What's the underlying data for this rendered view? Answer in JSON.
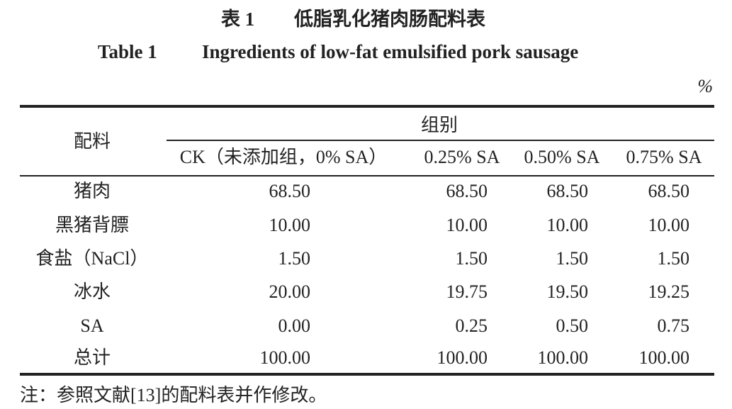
{
  "caption": {
    "label_cn": "表 1",
    "title_cn": "低脂乳化猪肉肠配料表",
    "label_en": "Table 1",
    "title_en": "Ingredients of low-fat emulsified pork sausage"
  },
  "unit": "%",
  "table": {
    "header": {
      "row_label": "配料",
      "group": "组别",
      "columns": [
        "CK（未添加组，0% SA）",
        "0.25% SA",
        "0.50% SA",
        "0.75% SA"
      ]
    },
    "rows": [
      [
        "猪肉",
        "68.50",
        "68.50",
        "68.50",
        "68.50"
      ],
      [
        "黑猪背膘",
        "10.00",
        "10.00",
        "10.00",
        "10.00"
      ],
      [
        "食盐（NaCl）",
        "1.50",
        "1.50",
        "1.50",
        "1.50"
      ],
      [
        "冰水",
        "20.00",
        "19.75",
        "19.50",
        "19.25"
      ],
      [
        "SA",
        "0.00",
        "0.25",
        "0.50",
        "0.75"
      ],
      [
        "总计",
        "100.00",
        "100.00",
        "100.00",
        "100.00"
      ]
    ]
  },
  "note": "注：参照文献[13]的配料表并作修改。"
}
